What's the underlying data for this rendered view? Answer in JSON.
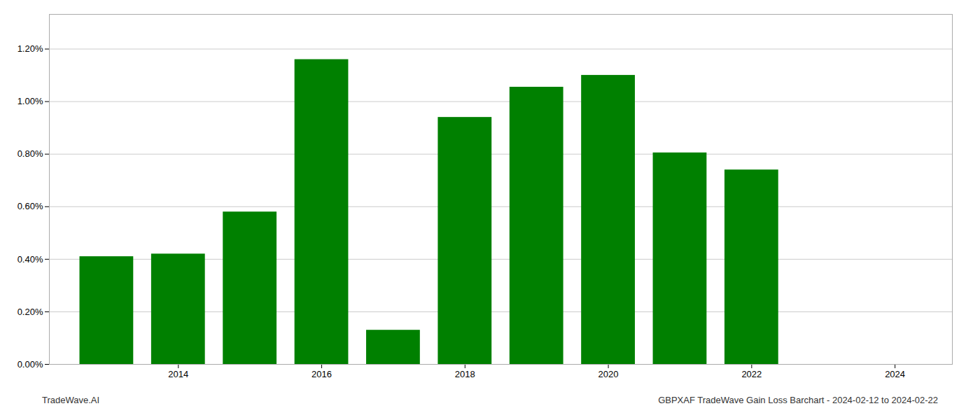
{
  "chart_data": {
    "type": "bar",
    "x": [
      2013,
      2014,
      2015,
      2016,
      2017,
      2018,
      2019,
      2020,
      2021,
      2022
    ],
    "values": [
      0.0041,
      0.0042,
      0.0058,
      0.0116,
      0.0013,
      0.0094,
      0.01055,
      0.011,
      0.00805,
      0.0074
    ],
    "color": "#008000",
    "xlim": [
      2012.2,
      2024.8
    ],
    "xticks": [
      2014,
      2016,
      2018,
      2020,
      2022,
      2024
    ],
    "ylim": [
      0.0,
      0.01332
    ],
    "yticks": [
      {
        "value": 0.0,
        "label": "0.00%"
      },
      {
        "value": 0.002,
        "label": "0.20%"
      },
      {
        "value": 0.004,
        "label": "0.40%"
      },
      {
        "value": 0.006,
        "label": "0.60%"
      },
      {
        "value": 0.008,
        "label": "0.80%"
      },
      {
        "value": 0.01,
        "label": "1.00%"
      },
      {
        "value": 0.012,
        "label": "1.20%"
      }
    ],
    "grid": "y",
    "annotations": [
      "TradeWave.AI",
      "GBPXAF TradeWave Gain Loss Barchart - 2024-02-12 to 2024-02-22"
    ]
  }
}
